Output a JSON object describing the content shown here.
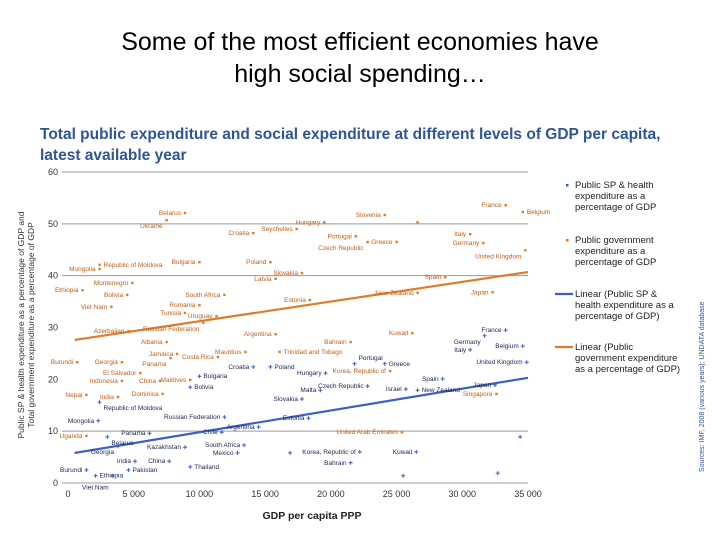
{
  "title_lines": [
    "Some of the most efficient economies have",
    "high social spending…"
  ],
  "subtitle_lines": [
    "Total public expenditure and social expenditure at different levels of GDP per capita,",
    "latest available year"
  ],
  "source": "Sources: IMF, 2008 (various years); UNDATA database",
  "colors": {
    "orange": "#e07b28",
    "blue": "#3a5fc8",
    "orange_label": "#c0601a",
    "blue_label": "#1c2550",
    "grid": "#999999"
  },
  "chart_data": {
    "type": "scatter",
    "xlabel": "GDP per capita PPP",
    "ylabel_lines": [
      "Public SP & health expenditure as a percentage of GDP and",
      "Total government expenditure as a percentage of GDP"
    ],
    "xlim": [
      0,
      35000
    ],
    "ylim": [
      0,
      60
    ],
    "xticks": [
      "0",
      "5 000",
      "10 000",
      "15 000",
      "20 000",
      "25 000",
      "30 000",
      "35 000"
    ],
    "xtick_values": [
      0,
      5000,
      10000,
      15000,
      20000,
      25000,
      30000,
      35000
    ],
    "yticks": [
      0,
      10,
      20,
      30,
      40,
      50,
      60
    ],
    "gridlines": [
      0,
      10,
      40,
      50,
      60
    ],
    "legend_position": "right",
    "series": [
      {
        "name": "Public government expenditure as a percentage of GDP",
        "color": "#e07b28",
        "points": [
          {
            "label": "Belarus",
            "x": 8900,
            "y": 52.1
          },
          {
            "label": "Ukraine",
            "x": 7500,
            "y": 50.7
          },
          {
            "label": "Seychelles",
            "x": 17400,
            "y": 49.0
          },
          {
            "label": "Hungary",
            "x": 19500,
            "y": 50.3
          },
          {
            "label": "Slovenia",
            "x": 24100,
            "y": 51.7
          },
          {
            "label": "",
            "x": 26600,
            "y": 50.3
          },
          {
            "label": "France",
            "x": 33300,
            "y": 53.6
          },
          {
            "label": "Belgium",
            "x": 34600,
            "y": 52.3
          },
          {
            "label": "Italy",
            "x": 30600,
            "y": 48.0
          },
          {
            "label": "Germany",
            "x": 31600,
            "y": 46.3
          },
          {
            "label": "United Kingdom",
            "x": 34800,
            "y": 44.9
          },
          {
            "label": "Croatia",
            "x": 14100,
            "y": 48.2
          },
          {
            "label": "Portugal",
            "x": 21900,
            "y": 47.6
          },
          {
            "label": "Greece",
            "x": 25000,
            "y": 46.5
          },
          {
            "label": "Czech Republic",
            "x": 22800,
            "y": 46.5
          },
          {
            "label": "Republic of Moldova",
            "x": 2400,
            "y": 42.1
          },
          {
            "label": "Mongolia",
            "x": 2400,
            "y": 41.3
          },
          {
            "label": "Montenegro",
            "x": 4900,
            "y": 38.6
          },
          {
            "label": "Bulgaria",
            "x": 10000,
            "y": 42.6
          },
          {
            "label": "Poland",
            "x": 15400,
            "y": 42.6
          },
          {
            "label": "Slovakia",
            "x": 17800,
            "y": 40.5
          },
          {
            "label": "Latvia",
            "x": 15800,
            "y": 39.4
          },
          {
            "label": "Spain",
            "x": 28700,
            "y": 39.7
          },
          {
            "label": "Estonia",
            "x": 18400,
            "y": 35.3
          },
          {
            "label": "New Zealand",
            "x": 26600,
            "y": 36.7
          },
          {
            "label": "Japan",
            "x": 32300,
            "y": 36.8
          },
          {
            "label": "South Africa",
            "x": 11900,
            "y": 36.3
          },
          {
            "label": "Ethiopia",
            "x": 1100,
            "y": 37.2
          },
          {
            "label": "Bolivia",
            "x": 4500,
            "y": 36.3
          },
          {
            "label": "Romania",
            "x": 10000,
            "y": 34.3
          },
          {
            "label": "Uruguay",
            "x": 11300,
            "y": 32.2
          },
          {
            "label": "Tunisia",
            "x": 8900,
            "y": 32.8
          },
          {
            "label": "Viet Nam",
            "x": 3300,
            "y": 34.0
          },
          {
            "label": "Azerbaijan",
            "x": 4600,
            "y": 29.3
          },
          {
            "label": "Russian Federation",
            "x": 10300,
            "y": 30.9
          },
          {
            "label": "Argentina",
            "x": 15800,
            "y": 28.7
          },
          {
            "label": "Albania",
            "x": 7500,
            "y": 27.2
          },
          {
            "label": "Jamaica",
            "x": 8300,
            "y": 24.9
          },
          {
            "label": "Costa Rica",
            "x": 11400,
            "y": 24.3
          },
          {
            "label": "Mauritius",
            "x": 13500,
            "y": 25.3
          },
          {
            "label": "Trinidad and Tobago",
            "x": 16100,
            "y": 25.3
          },
          {
            "label": "Burundi",
            "x": 700,
            "y": 23.3
          },
          {
            "label": "Georgia",
            "x": 4100,
            "y": 23.3
          },
          {
            "label": "Panama",
            "x": 7800,
            "y": 24.1
          },
          {
            "label": "El Salvador",
            "x": 5500,
            "y": 21.2
          },
          {
            "label": "Indonesia",
            "x": 4100,
            "y": 19.7
          },
          {
            "label": "China",
            "x": 7000,
            "y": 19.7
          },
          {
            "label": "Maldives",
            "x": 9300,
            "y": 19.9
          },
          {
            "label": "Nepal",
            "x": 1400,
            "y": 17.0
          },
          {
            "label": "Dominica",
            "x": 7200,
            "y": 17.2
          },
          {
            "label": "India",
            "x": 3800,
            "y": 16.6
          },
          {
            "label": "Bahrain",
            "x": 21500,
            "y": 27.2
          },
          {
            "label": "Kuwait",
            "x": 26200,
            "y": 28.9
          },
          {
            "label": "Korea, Republic of",
            "x": 24500,
            "y": 21.6
          },
          {
            "label": "United Arab Emirates",
            "x": 25400,
            "y": 9.8
          },
          {
            "label": "Singapore",
            "x": 32600,
            "y": 17.2
          },
          {
            "label": "Uganda",
            "x": 1400,
            "y": 9.1
          }
        ]
      },
      {
        "name": "Public SP & health expenditure as a percentage of GDP",
        "color": "#3a5fc8",
        "points": [
          {
            "label": "France",
            "x": 33300,
            "y": 29.5
          },
          {
            "label": "Germany",
            "x": 31700,
            "y": 28.4
          },
          {
            "label": "Belgium",
            "x": 34600,
            "y": 26.4
          },
          {
            "label": "Italy",
            "x": 30600,
            "y": 25.7
          },
          {
            "label": "United Kingdom",
            "x": 34900,
            "y": 23.3
          },
          {
            "label": "Portugal",
            "x": 21800,
            "y": 23.0
          },
          {
            "label": "Greece",
            "x": 24100,
            "y": 23.0
          },
          {
            "label": "Spain",
            "x": 28500,
            "y": 20.1
          },
          {
            "label": "Israel",
            "x": 25700,
            "y": 18.1
          },
          {
            "label": "Japan",
            "x": 32500,
            "y": 18.9
          },
          {
            "label": "New Zealand",
            "x": 26600,
            "y": 17.9
          },
          {
            "label": "Czech Republic",
            "x": 22800,
            "y": 18.7
          },
          {
            "label": "Hungary",
            "x": 19600,
            "y": 21.2
          },
          {
            "label": "Malta",
            "x": 19200,
            "y": 17.9
          },
          {
            "label": "Slovakia",
            "x": 17800,
            "y": 16.2
          },
          {
            "label": "Estonia",
            "x": 18300,
            "y": 12.5
          },
          {
            "label": "Croatia",
            "x": 14100,
            "y": 22.4
          },
          {
            "label": "Poland",
            "x": 15400,
            "y": 22.4
          },
          {
            "label": "Bulgaria",
            "x": 10000,
            "y": 20.6
          },
          {
            "label": "Bolivia",
            "x": 9300,
            "y": 18.5
          },
          {
            "label": "Republic of Moldova",
            "x": 2400,
            "y": 15.6
          },
          {
            "label": "Mongolia",
            "x": 2300,
            "y": 12.0
          },
          {
            "label": "Russian Federation",
            "x": 11900,
            "y": 12.7
          },
          {
            "label": "Panama",
            "x": 6200,
            "y": 9.6
          },
          {
            "label": "Chile",
            "x": 11700,
            "y": 9.8
          },
          {
            "label": "Argentina",
            "x": 14500,
            "y": 10.8
          },
          {
            "label": "Belarus",
            "x": 3000,
            "y": 8.9
          },
          {
            "label": "Georgia",
            "x": 3800,
            "y": 7.1
          },
          {
            "label": "South Africa",
            "x": 13400,
            "y": 7.3
          },
          {
            "label": "Kazakhstan",
            "x": 8900,
            "y": 6.9
          },
          {
            "label": "Mexico",
            "x": 12900,
            "y": 5.8
          },
          {
            "label": "India",
            "x": 5100,
            "y": 4.2
          },
          {
            "label": "China",
            "x": 7700,
            "y": 4.2
          },
          {
            "label": "Burundi",
            "x": 1400,
            "y": 2.5
          },
          {
            "label": "Ethiopia",
            "x": 2100,
            "y": 1.4
          },
          {
            "label": "Viet Nam",
            "x": 3400,
            "y": 1.4
          },
          {
            "label": "Pakistan",
            "x": 4600,
            "y": 2.5
          },
          {
            "label": "Thailand",
            "x": 9300,
            "y": 3.1
          },
          {
            "label": "Kuwait",
            "x": 26500,
            "y": 6.0
          },
          {
            "label": "Korea, Republic of",
            "x": 22200,
            "y": 6.0
          },
          {
            "label": "Bahrain",
            "x": 21500,
            "y": 3.9
          },
          {
            "label": "",
            "x": 32700,
            "y": 1.9
          },
          {
            "label": "",
            "x": 25500,
            "y": 1.4
          },
          {
            "label": "",
            "x": 34400,
            "y": 8.9
          },
          {
            "label": "",
            "x": 16900,
            "y": 5.8
          }
        ]
      }
    ],
    "trendlines": [
      {
        "name": "Linear (Public SP & health expenditure as a percentage of GDP)",
        "color": "#3a5fc8",
        "x": [
          500,
          35000
        ],
        "y": [
          5.8,
          20.3
        ]
      },
      {
        "name": "Linear (Public government expenditure as a percentage of GDP)",
        "color": "#e07b28",
        "x": [
          500,
          35000
        ],
        "y": [
          27.6,
          40.7
        ]
      }
    ],
    "legend": [
      {
        "kind": "marker",
        "color": "#3a5fc8",
        "lines": [
          "Public SP & health",
          "expenditure as a",
          "percentage of GDP"
        ]
      },
      {
        "kind": "marker",
        "color": "#e07b28",
        "lines": [
          "Public government",
          "expenditure as a",
          "percentage of GDP"
        ]
      },
      {
        "kind": "line",
        "color": "#3a5fc8",
        "lines": [
          "Linear (Public SP &",
          "health expenditure as a",
          "percentage of GDP)"
        ]
      },
      {
        "kind": "line",
        "color": "#e07b28",
        "lines": [
          "Linear (Public",
          "government expenditure",
          "as a percentage of GDP)"
        ]
      }
    ]
  }
}
